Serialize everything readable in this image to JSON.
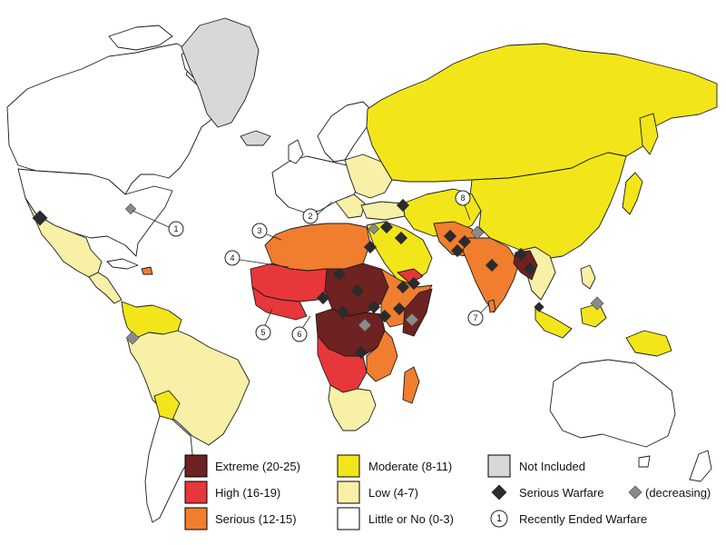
{
  "colors": {
    "extreme": "#6e2222",
    "high": "#e8373a",
    "serious": "#f07e2e",
    "moderate": "#f2e61a",
    "low": "#f8f0a6",
    "little": "#ffffff",
    "not_included": "#d8d8d8",
    "warfare": "#2b2b2b",
    "warfare_decreasing": "#8a8a8a"
  },
  "legend": {
    "extreme": "Extreme (20-25)",
    "high": "High (16-19)",
    "serious": "Serious (12-15)",
    "moderate": "Moderate (8-11)",
    "low": "Low (4-7)",
    "little": "Little or No (0-3)",
    "not_included": "Not Included",
    "warfare": "Serious Warfare",
    "decreasing": "(decreasing)",
    "ended": "Recently Ended Warfare",
    "ended_symbol": "1"
  },
  "callouts": [
    "1",
    "2",
    "3",
    "4",
    "5",
    "6",
    "7",
    "8"
  ]
}
